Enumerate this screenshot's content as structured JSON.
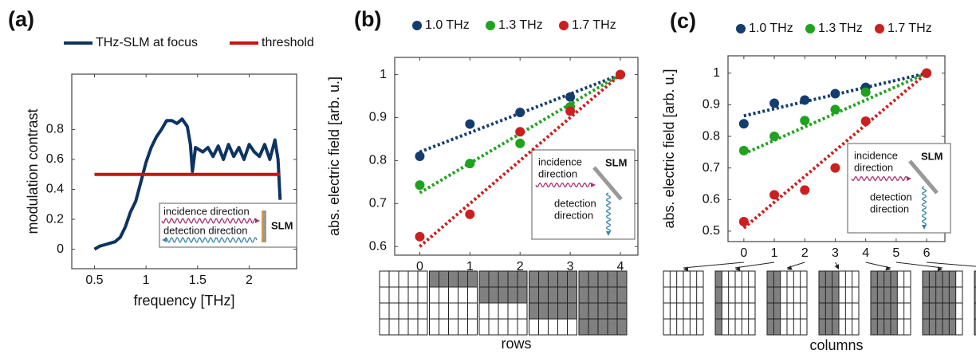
{
  "chart_data": [
    {
      "type": "line",
      "panel_label": "(a)",
      "xlabel": "frequency [THz]",
      "ylabel": "modulation contrast",
      "xlim": [
        0.28,
        2.46
      ],
      "ylim": [
        -0.13,
        1.17
      ],
      "xticks": [
        0.5,
        1,
        1.5,
        2
      ],
      "yticks": [
        0,
        0.2,
        0.4,
        0.6,
        0.8
      ],
      "grid": false,
      "series": [
        {
          "name": "THz-SLM at focus",
          "color": "#0d3461",
          "x": [
            0.5,
            0.55,
            0.6,
            0.65,
            0.7,
            0.75,
            0.8,
            0.85,
            0.9,
            0.95,
            1.0,
            1.05,
            1.1,
            1.15,
            1.2,
            1.25,
            1.3,
            1.35,
            1.4,
            1.43,
            1.45,
            1.48,
            1.55,
            1.6,
            1.65,
            1.7,
            1.75,
            1.8,
            1.85,
            1.9,
            1.95,
            2.0,
            2.05,
            2.1,
            2.15,
            2.2,
            2.25,
            2.28,
            2.3
          ],
          "values": [
            0.0,
            0.02,
            0.03,
            0.04,
            0.05,
            0.08,
            0.15,
            0.25,
            0.32,
            0.45,
            0.58,
            0.68,
            0.75,
            0.8,
            0.86,
            0.86,
            0.84,
            0.87,
            0.82,
            0.7,
            0.52,
            0.68,
            0.65,
            0.68,
            0.62,
            0.69,
            0.6,
            0.7,
            0.62,
            0.68,
            0.6,
            0.7,
            0.65,
            0.62,
            0.7,
            0.6,
            0.73,
            0.6,
            0.33
          ]
        },
        {
          "name": "threshold",
          "color": "#cc1111",
          "x": [
            0.5,
            2.3
          ],
          "values": [
            0.5,
            0.5
          ]
        }
      ],
      "annotations": [
        "incidence direction",
        "detection direction",
        "SLM"
      ]
    },
    {
      "type": "scatter",
      "panel_label": "(b)",
      "xlabel": "rows",
      "ylabel": "abs. electric field [arb. u.]",
      "xlim": [
        -0.5,
        4.35
      ],
      "ylim": [
        0.58,
        1.04
      ],
      "xticks": [
        0,
        1,
        2,
        3,
        4
      ],
      "yticks": [
        0.6,
        0.7,
        0.8,
        0.9,
        1
      ],
      "grid": false,
      "series": [
        {
          "name": "1.0 THz",
          "color": "#143d6e",
          "x": [
            0,
            1,
            2,
            3,
            4
          ],
          "values": [
            0.81,
            0.885,
            0.912,
            0.948,
            1.0
          ],
          "fit_x": [
            0,
            4
          ],
          "fit": [
            0.82,
            1.0
          ]
        },
        {
          "name": "1.3 THz",
          "color": "#1fa31f",
          "x": [
            0,
            1,
            2,
            3,
            4
          ],
          "values": [
            0.743,
            0.793,
            0.84,
            0.925,
            1.0
          ],
          "fit_x": [
            0,
            4
          ],
          "fit": [
            0.725,
            1.0
          ]
        },
        {
          "name": "1.7 THz",
          "color": "#cc1f1f",
          "x": [
            0,
            1,
            2,
            3,
            4
          ],
          "values": [
            0.623,
            0.675,
            0.867,
            0.915,
            1.0
          ],
          "fit_x": [
            0,
            4
          ],
          "fit": [
            0.6,
            1.0
          ]
        }
      ],
      "annotations": [
        "incidence",
        "direction",
        "SLM",
        "detection",
        "direction"
      ]
    },
    {
      "type": "scatter",
      "panel_label": "(c)",
      "xlabel": "columns",
      "ylabel": "abs. electric field [arb. u.]",
      "xlim": [
        -0.52,
        6.6
      ],
      "ylim": [
        0.467,
        1.055
      ],
      "xticks": [
        0,
        1,
        2,
        3,
        4,
        5,
        6
      ],
      "yticks": [
        0.5,
        0.6,
        0.7,
        0.8,
        0.9,
        1
      ],
      "grid": false,
      "series": [
        {
          "name": "1.0 THz",
          "color": "#143d6e",
          "x": [
            0,
            1,
            2,
            3,
            4,
            6
          ],
          "values": [
            0.84,
            0.905,
            0.915,
            0.935,
            0.955,
            1.0
          ],
          "fit_x": [
            0,
            6
          ],
          "fit": [
            0.865,
            1.0
          ]
        },
        {
          "name": "1.3 THz",
          "color": "#1fa31f",
          "x": [
            0,
            1,
            2,
            3,
            4,
            6
          ],
          "values": [
            0.755,
            0.8,
            0.85,
            0.885,
            0.94,
            1.0
          ],
          "fit_x": [
            0,
            6
          ],
          "fit": [
            0.745,
            1.0
          ]
        },
        {
          "name": "1.7 THz",
          "color": "#cc1f1f",
          "x": [
            0,
            1,
            2,
            3,
            4,
            6
          ],
          "values": [
            0.53,
            0.615,
            0.63,
            0.7,
            0.848,
            1.0
          ],
          "fit_x": [
            0,
            6
          ],
          "fit": [
            0.51,
            1.0
          ]
        }
      ],
      "annotations": [
        "incidence",
        "direction",
        "SLM",
        "detection",
        "direction"
      ]
    }
  ]
}
